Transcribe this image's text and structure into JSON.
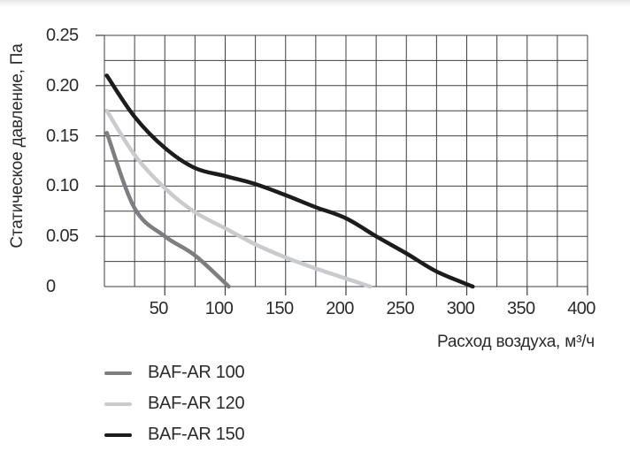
{
  "chart_data": {
    "type": "line",
    "title": "",
    "xlabel": "Расход воздуха, м³/ч",
    "ylabel": "Статическое давление, Па",
    "xlim": [
      0,
      400
    ],
    "ylim": [
      0,
      0.25
    ],
    "x_grid_step": 25,
    "y_grid_step": 0.025,
    "grid": true,
    "legend_position": "bottom-left",
    "grid_color": "#3f3f3f",
    "text_color": "#2b2b2b",
    "x_ticks": [
      {
        "value": 50,
        "label": "50"
      },
      {
        "value": 100,
        "label": "100"
      },
      {
        "value": 150,
        "label": "150"
      },
      {
        "value": 200,
        "label": "200"
      },
      {
        "value": 250,
        "label": "250"
      },
      {
        "value": 300,
        "label": "300"
      },
      {
        "value": 350,
        "label": "350"
      },
      {
        "value": 400,
        "label": "400"
      }
    ],
    "y_ticks": [
      {
        "value": 0,
        "label": "0"
      },
      {
        "value": 0.05,
        "label": "0.05"
      },
      {
        "value": 0.1,
        "label": "0.10"
      },
      {
        "value": 0.15,
        "label": "0.15"
      },
      {
        "value": 0.2,
        "label": "0.20"
      },
      {
        "value": 0.25,
        "label": "0.25"
      }
    ],
    "series": [
      {
        "name": "BAF-AR 100",
        "color": "#7d7e81",
        "points": [
          [
            2,
            0.153
          ],
          [
            25,
            0.078
          ],
          [
            50,
            0.05
          ],
          [
            75,
            0.031
          ],
          [
            103,
            0.0
          ]
        ]
      },
      {
        "name": "BAF-AR 120",
        "color": "#c9cbce",
        "points": [
          [
            2,
            0.175
          ],
          [
            25,
            0.131
          ],
          [
            50,
            0.098
          ],
          [
            75,
            0.074
          ],
          [
            100,
            0.058
          ],
          [
            125,
            0.042
          ],
          [
            150,
            0.029
          ],
          [
            175,
            0.018
          ],
          [
            200,
            0.008
          ],
          [
            220,
            0.0
          ]
        ]
      },
      {
        "name": "BAF-AR 150",
        "color": "#1c1c1c",
        "points": [
          [
            2,
            0.21
          ],
          [
            25,
            0.169
          ],
          [
            50,
            0.138
          ],
          [
            75,
            0.118
          ],
          [
            100,
            0.11
          ],
          [
            125,
            0.102
          ],
          [
            150,
            0.091
          ],
          [
            175,
            0.079
          ],
          [
            200,
            0.068
          ],
          [
            225,
            0.05
          ],
          [
            250,
            0.033
          ],
          [
            275,
            0.015
          ],
          [
            305,
            0.0
          ]
        ]
      }
    ]
  }
}
